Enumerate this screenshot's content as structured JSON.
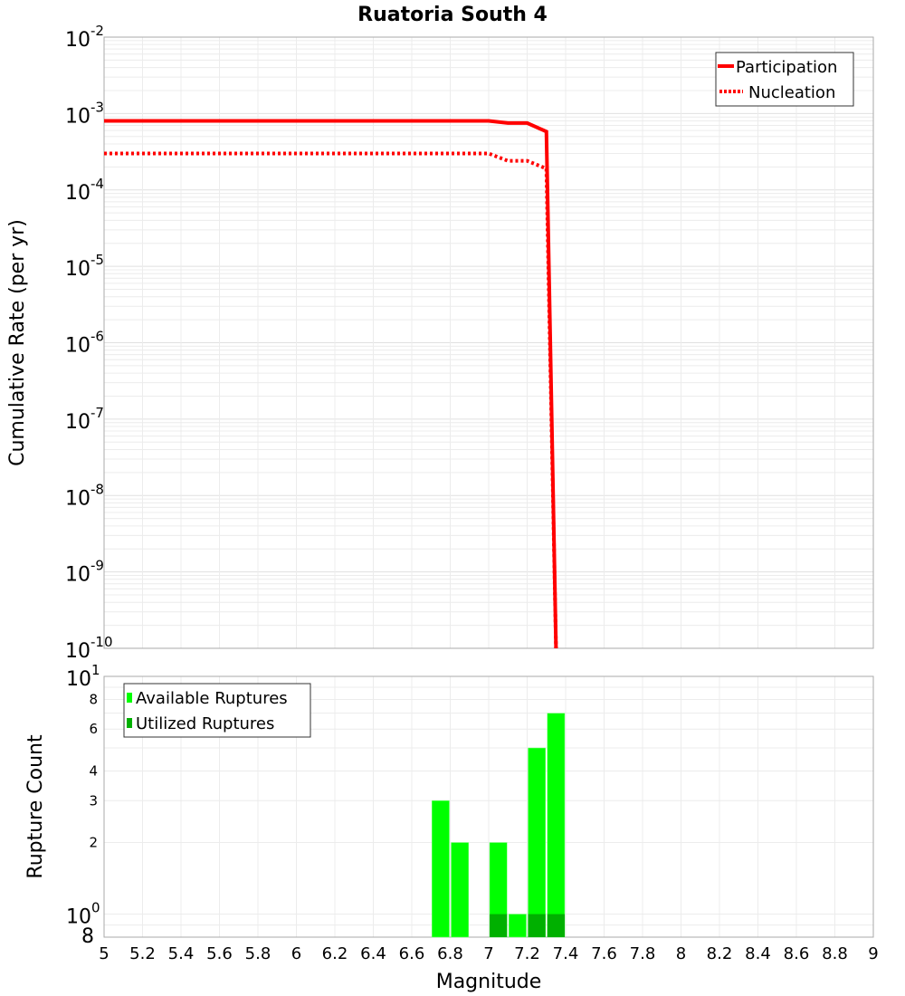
{
  "title": "Ruatoria South 4",
  "top_chart": {
    "ylabel": "Cumulative Rate (per yr)",
    "y_ticks": [
      {
        "base": "10",
        "exp": "-2"
      },
      {
        "base": "10",
        "exp": "-3"
      },
      {
        "base": "10",
        "exp": "-4"
      },
      {
        "base": "10",
        "exp": "-5"
      },
      {
        "base": "10",
        "exp": "-6"
      },
      {
        "base": "10",
        "exp": "-7"
      },
      {
        "base": "10",
        "exp": "-8"
      },
      {
        "base": "10",
        "exp": "-9"
      },
      {
        "base": "10",
        "exp": "-10"
      }
    ],
    "legend": [
      {
        "label": "Participation",
        "color": "#ff0000",
        "style": "solid"
      },
      {
        "label": "Nucleation",
        "color": "#ff0000",
        "style": "dotted"
      }
    ]
  },
  "bottom_chart": {
    "ylabel": "Rupture Count",
    "y_ticks": [
      {
        "label": "10",
        "exp": "1"
      },
      {
        "label": "8"
      },
      {
        "label": "6"
      },
      {
        "label": "4"
      },
      {
        "label": "3"
      },
      {
        "label": "2"
      },
      {
        "label": "10",
        "exp": "0"
      },
      {
        "label": "8"
      }
    ],
    "legend": [
      {
        "label": "Available Ruptures",
        "color": "#00ff00"
      },
      {
        "label": "Utilized Ruptures",
        "color": "#00b000"
      }
    ]
  },
  "xlabel": "Magnitude",
  "x_ticks": [
    "5",
    "5.2",
    "5.4",
    "5.6",
    "5.8",
    "6",
    "6.2",
    "6.4",
    "6.6",
    "6.8",
    "7",
    "7.2",
    "7.4",
    "7.6",
    "7.8",
    "8",
    "8.2",
    "8.4",
    "8.6",
    "8.8",
    "9"
  ],
  "chart_data": [
    {
      "type": "line",
      "title": "Ruatoria South 4",
      "xlabel": "Magnitude",
      "ylabel": "Cumulative Rate (per yr)",
      "yscale": "log",
      "xlim": [
        5,
        9
      ],
      "ylim": [
        1e-10,
        0.01
      ],
      "grid": true,
      "legend_position": "top-right",
      "series": [
        {
          "name": "Participation",
          "x": [
            5.0,
            7.0,
            7.1,
            7.2,
            7.3,
            7.35
          ],
          "y": [
            0.0008,
            0.0008,
            0.00075,
            0.00075,
            0.00058,
            1e-10
          ]
        },
        {
          "name": "Nucleation",
          "x": [
            5.0,
            7.0,
            7.1,
            7.2,
            7.3,
            7.35
          ],
          "y": [
            0.0003,
            0.0003,
            0.00024,
            0.00024,
            0.00019,
            1e-10
          ]
        }
      ]
    },
    {
      "type": "bar",
      "xlabel": "Magnitude",
      "ylabel": "Rupture Count",
      "yscale": "log",
      "xlim": [
        5,
        9
      ],
      "ylim": [
        0.8,
        10
      ],
      "grid": true,
      "legend_position": "top-left",
      "categories": [
        6.75,
        6.85,
        6.95,
        7.05,
        7.15,
        7.25,
        7.35
      ],
      "series": [
        {
          "name": "Available Ruptures",
          "values": [
            3,
            2,
            0,
            2,
            1,
            5,
            7
          ]
        },
        {
          "name": "Utilized Ruptures",
          "values": [
            0,
            0,
            0,
            1,
            0,
            1,
            1
          ]
        }
      ]
    }
  ]
}
